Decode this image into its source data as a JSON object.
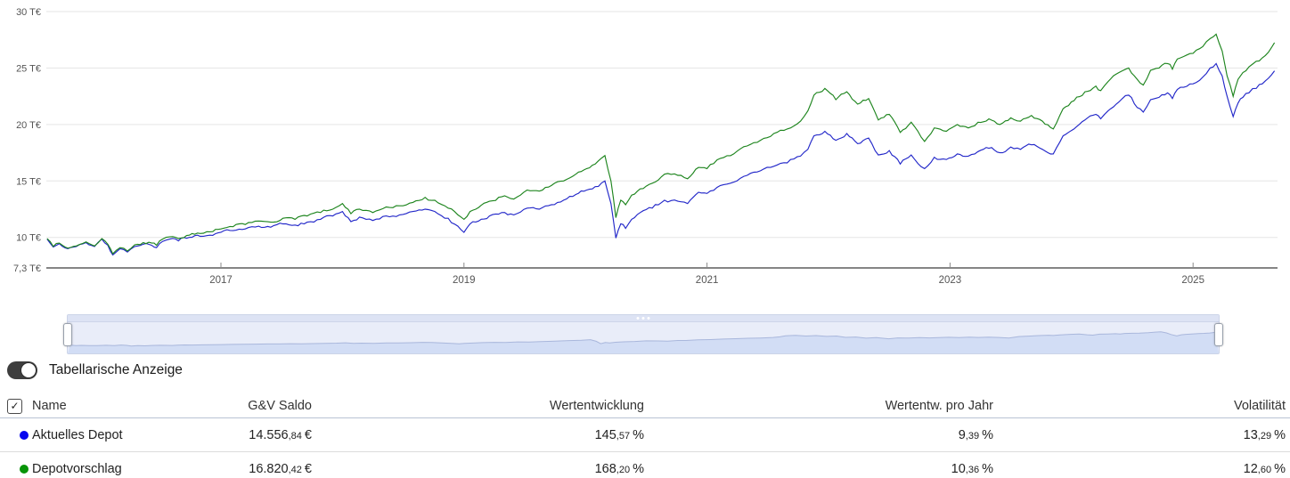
{
  "colors": {
    "line_blue": "#2328c9",
    "line_green": "#1e851e",
    "dot_blue": "#0606ef",
    "dot_green": "#089408",
    "grid": "#e5e5e5",
    "axis": "#3c3c3c",
    "tick_text": "#555555",
    "nav_line": "#a9b7dc",
    "nav_fill": "#d2ddf5"
  },
  "chart_data": {
    "type": "line",
    "title": "",
    "xlabel": "",
    "ylabel": "T€",
    "grid": true,
    "legend_position": "none",
    "ylim": [
      7.3,
      30
    ],
    "xlim": [
      2015.55,
      2025.7
    ],
    "y_tick_values": [
      30,
      25,
      20,
      15,
      10,
      7.3
    ],
    "y_tick_labels": [
      "30 T€",
      "25 T€",
      "20 T€",
      "15 T€",
      "10 T€",
      "7,3 T€"
    ],
    "x_tick_values": [
      2017,
      2019,
      2021,
      2023,
      2025
    ],
    "x_tick_labels": [
      "2017",
      "2019",
      "2021",
      "2023",
      "2025"
    ],
    "x": [
      2015.57,
      2015.62,
      2015.67,
      2015.74,
      2015.81,
      2015.89,
      2015.96,
      2016.02,
      2016.07,
      2016.11,
      2016.17,
      2016.23,
      2016.29,
      2016.36,
      2016.43,
      2016.47,
      2016.52,
      2016.58,
      2016.65,
      2016.74,
      2016.83,
      2016.91,
      2017.0,
      2017.1,
      2017.2,
      2017.31,
      2017.41,
      2017.51,
      2017.61,
      2017.71,
      2017.82,
      2017.92,
      2018.0,
      2018.07,
      2018.14,
      2018.25,
      2018.36,
      2018.47,
      2018.58,
      2018.68,
      2018.76,
      2018.87,
      2018.95,
      2019.0,
      2019.05,
      2019.12,
      2019.21,
      2019.31,
      2019.41,
      2019.52,
      2019.62,
      2019.72,
      2019.82,
      2019.92,
      2020.01,
      2020.08,
      2020.16,
      2020.21,
      2020.25,
      2020.29,
      2020.33,
      2020.38,
      2020.45,
      2020.55,
      2020.65,
      2020.76,
      2020.84,
      2020.93,
      2021.0,
      2021.11,
      2021.22,
      2021.33,
      2021.44,
      2021.55,
      2021.66,
      2021.77,
      2021.83,
      2021.88,
      2021.97,
      2022.06,
      2022.15,
      2022.24,
      2022.33,
      2022.41,
      2022.5,
      2022.59,
      2022.68,
      2022.79,
      2022.87,
      2022.97,
      2023.06,
      2023.15,
      2023.23,
      2023.32,
      2023.41,
      2023.5,
      2023.58,
      2023.67,
      2023.76,
      2023.85,
      2023.93,
      2024.02,
      2024.11,
      2024.2,
      2024.24,
      2024.3,
      2024.39,
      2024.47,
      2024.54,
      2024.59,
      2024.65,
      2024.72,
      2024.79,
      2024.83,
      2024.87,
      2025.0,
      2025.08,
      2025.14,
      2025.19,
      2025.24,
      2025.28,
      2025.33,
      2025.37,
      2025.41,
      2025.46,
      2025.52,
      2025.57,
      2025.62,
      2025.67
    ],
    "series": [
      {
        "name": "Aktuelles Depot",
        "color": "#2328c9",
        "values": [
          9.85,
          9.15,
          9.45,
          9.0,
          9.2,
          9.55,
          9.2,
          9.85,
          9.3,
          8.45,
          9.0,
          8.7,
          9.2,
          9.4,
          9.3,
          9.1,
          9.65,
          9.85,
          9.7,
          10.0,
          10.1,
          10.2,
          10.45,
          10.6,
          10.75,
          11.0,
          10.9,
          11.2,
          11.1,
          11.35,
          11.6,
          11.9,
          12.3,
          11.4,
          11.8,
          11.5,
          11.9,
          12.0,
          12.3,
          12.5,
          12.3,
          11.7,
          11.0,
          10.45,
          11.2,
          11.45,
          11.9,
          12.2,
          12.0,
          12.6,
          12.5,
          12.9,
          13.3,
          13.8,
          14.2,
          14.5,
          15.0,
          13.0,
          9.95,
          11.2,
          10.8,
          11.6,
          12.2,
          12.6,
          13.3,
          13.2,
          13.0,
          14.0,
          13.9,
          14.6,
          14.9,
          15.5,
          15.9,
          16.3,
          16.6,
          17.2,
          17.8,
          19.0,
          19.4,
          18.6,
          19.2,
          18.3,
          18.8,
          17.3,
          17.7,
          16.5,
          17.3,
          16.1,
          17.1,
          16.9,
          17.4,
          17.2,
          17.6,
          17.9,
          17.5,
          18.0,
          17.8,
          18.2,
          17.8,
          17.4,
          19.0,
          19.6,
          20.4,
          20.9,
          20.5,
          21.2,
          22.0,
          22.6,
          21.5,
          21.1,
          22.2,
          22.4,
          22.8,
          22.3,
          23.1,
          23.6,
          24.2,
          25.0,
          25.4,
          24.3,
          22.5,
          20.7,
          21.9,
          22.4,
          22.8,
          23.2,
          23.6,
          24.1,
          24.75
        ]
      },
      {
        "name": "Depotvorschlag",
        "color": "#1e851e",
        "values": [
          9.9,
          9.2,
          9.5,
          9.05,
          9.25,
          9.6,
          9.25,
          9.9,
          9.4,
          8.55,
          9.1,
          8.8,
          9.35,
          9.55,
          9.5,
          9.3,
          9.85,
          10.05,
          9.9,
          10.2,
          10.35,
          10.5,
          10.75,
          10.95,
          11.15,
          11.45,
          11.35,
          11.7,
          11.6,
          11.9,
          12.2,
          12.5,
          13.0,
          12.1,
          12.5,
          12.2,
          12.7,
          12.8,
          13.1,
          13.55,
          13.3,
          12.6,
          12.0,
          11.6,
          12.3,
          12.65,
          13.2,
          13.6,
          13.4,
          14.2,
          14.1,
          14.6,
          15.0,
          15.6,
          16.1,
          16.5,
          17.25,
          15.0,
          11.75,
          13.3,
          12.9,
          13.75,
          14.3,
          14.8,
          15.6,
          15.5,
          15.2,
          16.2,
          16.1,
          17.0,
          17.4,
          18.1,
          18.6,
          19.2,
          19.6,
          20.3,
          21.2,
          22.6,
          23.2,
          22.2,
          22.9,
          21.8,
          22.3,
          20.4,
          20.9,
          19.3,
          20.2,
          18.5,
          19.7,
          19.4,
          20.0,
          19.7,
          20.2,
          20.5,
          20.0,
          20.6,
          20.3,
          20.8,
          20.3,
          19.6,
          21.4,
          22.1,
          22.9,
          23.4,
          23.0,
          23.8,
          24.6,
          25.0,
          24.0,
          23.5,
          24.8,
          25.0,
          25.4,
          24.9,
          25.8,
          26.3,
          26.9,
          27.6,
          28.0,
          26.5,
          24.3,
          22.5,
          24.0,
          24.6,
          25.1,
          25.6,
          25.9,
          26.4,
          27.25
        ]
      }
    ]
  },
  "toggle": {
    "label": "Tabellarische Anzeige",
    "state": "on"
  },
  "icons": {
    "checkbox_check": "✓"
  },
  "table": {
    "columns": {
      "name": "Name",
      "gv": "G&V Saldo",
      "we": "Wertentwicklung",
      "wj": "Wertentw. pro Jahr",
      "vol": "Volatilität"
    },
    "rows": [
      {
        "name": "Aktuelles Depot",
        "color": "#0606ef",
        "gv": {
          "main": "14.556",
          "dec": ",84",
          "unit": "€"
        },
        "we": {
          "main": "145",
          "dec": ",57",
          "unit": "%"
        },
        "wj": {
          "main": "9",
          "dec": ",39",
          "unit": "%"
        },
        "vol": {
          "main": "13",
          "dec": ",29",
          "unit": "%"
        }
      },
      {
        "name": "Depotvorschlag",
        "color": "#089408",
        "gv": {
          "main": "16.820",
          "dec": ",42",
          "unit": "€"
        },
        "we": {
          "main": "168",
          "dec": ",20",
          "unit": "%"
        },
        "wj": {
          "main": "10",
          "dec": ",36",
          "unit": "%"
        },
        "vol": {
          "main": "12",
          "dec": ",60",
          "unit": "%"
        }
      }
    ]
  }
}
